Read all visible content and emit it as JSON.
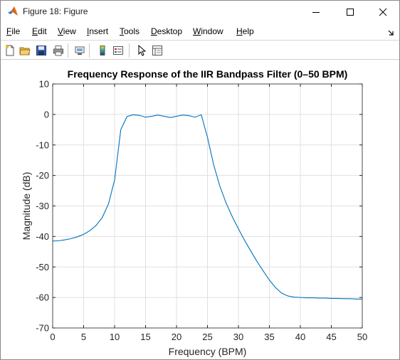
{
  "window": {
    "title": "Figure 18: Figure"
  },
  "menu": {
    "items": [
      {
        "accel": "F",
        "rest": "ile",
        "name": "file"
      },
      {
        "accel": "E",
        "rest": "dit",
        "name": "edit"
      },
      {
        "accel": "V",
        "rest": "iew",
        "name": "view"
      },
      {
        "accel": "I",
        "rest": "nsert",
        "name": "insert"
      },
      {
        "accel": "T",
        "rest": "ools",
        "name": "tools"
      },
      {
        "accel": "D",
        "rest": "esktop",
        "name": "desktop"
      },
      {
        "accel": "W",
        "rest": "indow",
        "name": "window"
      },
      {
        "accel": "H",
        "rest": "elp",
        "name": "help"
      }
    ]
  },
  "toolbar": {
    "icons": [
      "new-figure-icon",
      "open-file-icon",
      "save-icon",
      "print-icon",
      "link-plot-icon",
      "insert-colorbar-icon",
      "insert-legend-icon",
      "edit-plot-icon",
      "property-inspector-icon"
    ]
  },
  "colors": {
    "line": "#0072bd",
    "grid": "#e0e0e0",
    "axis": "#262626"
  },
  "chart_data": {
    "type": "line",
    "title": "Frequency Response of the IIR Bandpass Filter (0–50 BPM)",
    "xlabel": "Frequency (BPM)",
    "ylabel": "Magnitude (dB)",
    "xlim": [
      0,
      50
    ],
    "ylim": [
      -70,
      10
    ],
    "xticks": [
      0,
      5,
      10,
      15,
      20,
      25,
      30,
      35,
      40,
      45,
      50
    ],
    "yticks": [
      10,
      0,
      -10,
      -20,
      -30,
      -40,
      -50,
      -60,
      -70
    ],
    "grid": true,
    "series": [
      {
        "x": [
          0,
          1,
          2,
          3,
          4,
          5,
          6,
          7,
          8,
          9,
          10,
          11,
          12,
          13,
          14,
          15,
          16,
          17,
          18,
          19,
          20,
          21,
          22,
          23,
          24,
          25,
          26,
          27,
          28,
          29,
          30,
          31,
          32,
          33,
          34,
          35,
          36,
          37,
          38,
          39,
          40,
          41,
          42,
          43,
          44,
          45,
          46,
          47,
          48,
          49,
          50
        ],
        "y": [
          -41.5,
          -41.4,
          -41.1,
          -40.7,
          -40.1,
          -39.3,
          -38.1,
          -36.4,
          -33.8,
          -29.4,
          -21.5,
          -5.0,
          -0.7,
          -0.1,
          -0.3,
          -0.9,
          -0.6,
          -0.2,
          -0.6,
          -1.0,
          -0.6,
          -0.2,
          -0.4,
          -0.9,
          -0.1,
          -7.5,
          -16.5,
          -23.5,
          -29.0,
          -33.5,
          -37.5,
          -41.3,
          -44.8,
          -48.2,
          -51.3,
          -54.3,
          -56.8,
          -58.6,
          -59.5,
          -59.9,
          -60.0,
          -60.1,
          -60.1,
          -60.2,
          -60.2,
          -60.3,
          -60.3,
          -60.4,
          -60.4,
          -60.5,
          -60.5
        ]
      }
    ]
  }
}
